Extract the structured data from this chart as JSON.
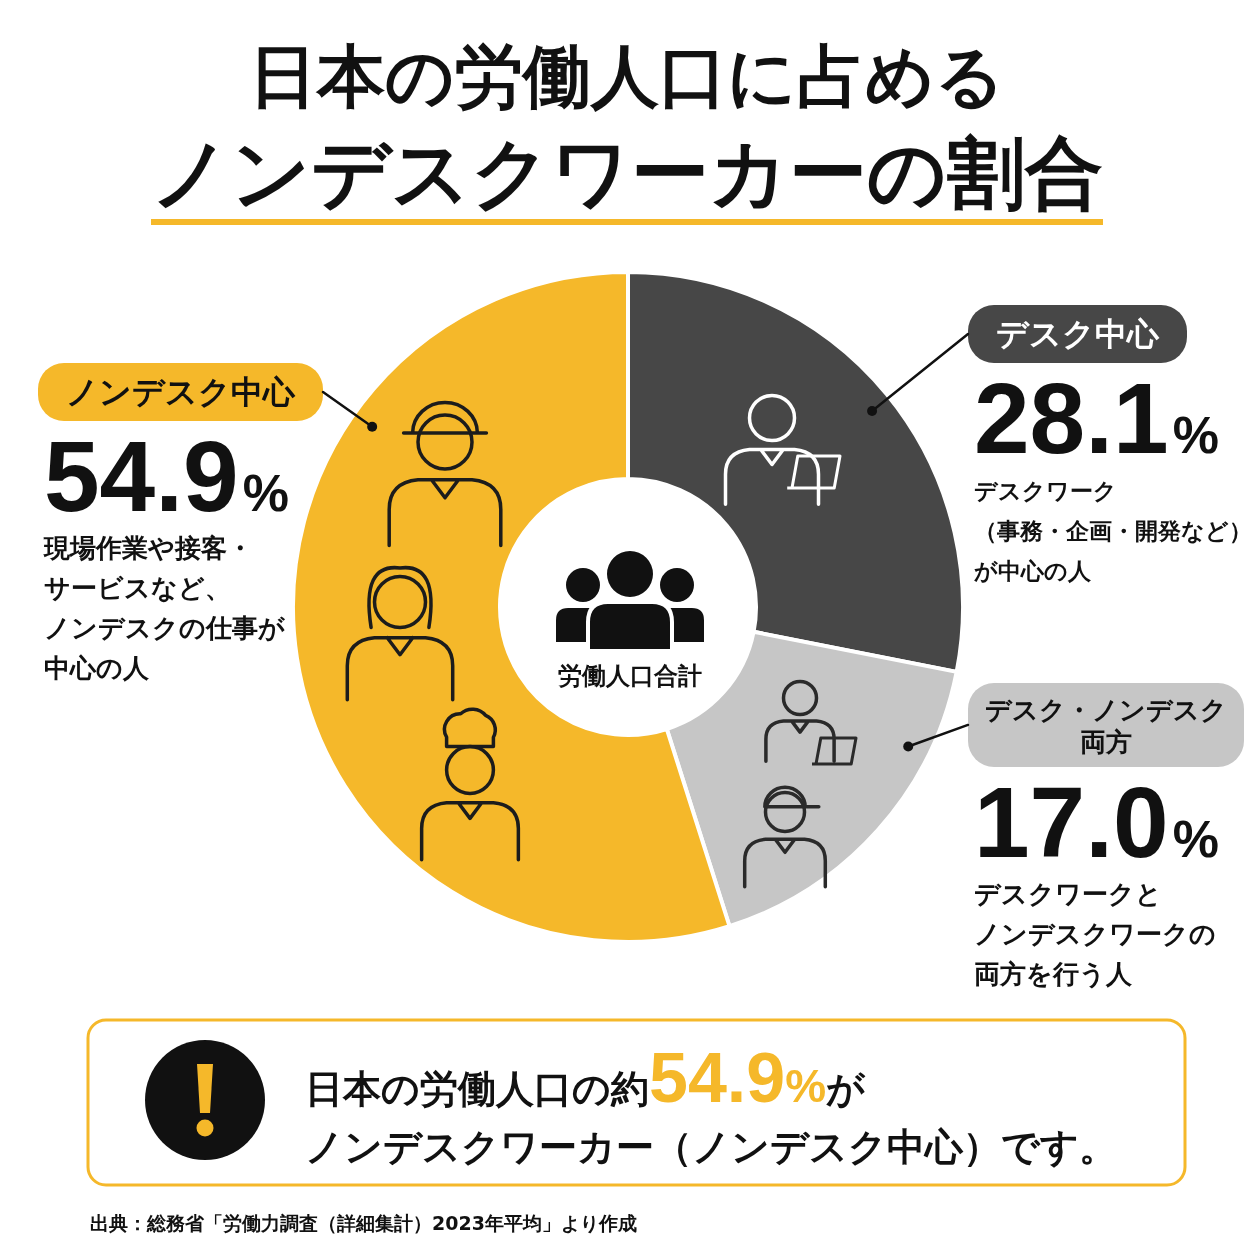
{
  "chart_data": {
    "type": "donut",
    "title": "日本の労働人口に占めるノンデスクワーカーの割合",
    "categories": [
      "デスク中心",
      "デスク・ノンデスク両方",
      "ノンデスク中心"
    ],
    "values": [
      28.1,
      17.0,
      54.9
    ],
    "colors": [
      "#474747",
      "#c6c6c6",
      "#f5b82a"
    ],
    "value_labels": [
      "28.1%",
      "17.0%",
      "54.9%"
    ],
    "annotations": [
      "デスクワーク（事務・企画・開発など）が中心の人",
      "デスクワークとノンデスクワークの両方を行う人",
      "現場作業や接客・サービスなど、ノンデスクの仕事が中心の人",
      "労働人口合計",
      "日本の労働人口の約54.9%がノンデスクワーカー（ノンデスク中心）です。",
      "出典：総務省「労働力調査（詳細集計）2023年平均」より作成"
    ]
  }
}
